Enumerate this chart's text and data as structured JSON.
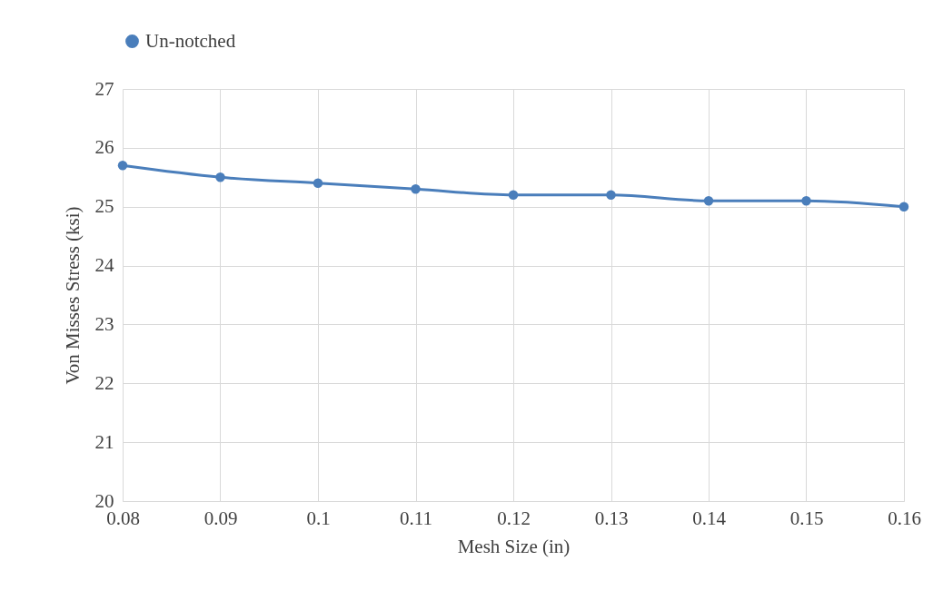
{
  "chart_data": {
    "type": "line",
    "xlabel": "Mesh Size (in)",
    "ylabel": "Von Misses Stress (ksi)",
    "x": [
      0.08,
      0.09,
      0.1,
      0.11,
      0.12,
      0.13,
      0.14,
      0.15,
      0.16
    ],
    "series": [
      {
        "name": "Un-notched",
        "color": "#4a7ebb",
        "values": [
          25.7,
          25.5,
          25.4,
          25.3,
          25.2,
          25.2,
          25.1,
          25.1,
          25.0
        ]
      }
    ],
    "xlim": [
      0.08,
      0.16
    ],
    "xticks": [
      0.08,
      0.09,
      0.1,
      0.11,
      0.12,
      0.13,
      0.14,
      0.15,
      0.16
    ],
    "ylim": [
      20,
      27
    ],
    "yticks": [
      20,
      21,
      22,
      23,
      24,
      25,
      26,
      27
    ],
    "grid": true,
    "legend": "top",
    "marker": "circle",
    "line_style": "solid"
  }
}
